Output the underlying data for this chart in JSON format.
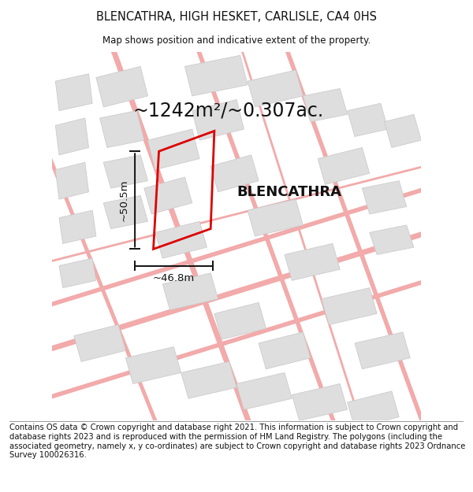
{
  "title": "BLENCATHRA, HIGH HESKET, CARLISLE, CA4 0HS",
  "subtitle": "Map shows position and indicative extent of the property.",
  "footer": "Contains OS data © Crown copyright and database right 2021. This information is subject to Crown copyright and database rights 2023 and is reproduced with the permission of HM Land Registry. The polygons (including the associated geometry, namely x, y co-ordinates) are subject to Crown copyright and database rights 2023 Ordnance Survey 100026316.",
  "area_label": "~1242m²/~0.307ac.",
  "property_label": "BLENCATHRA",
  "width_label": "~46.8m",
  "height_label": "~50.5m",
  "bg_color": "#ffffff",
  "map_bg": "#ffffff",
  "road_color": "#f2aaaa",
  "building_color": "#dedede",
  "building_edge": "#cccccc",
  "plot_edge_color": "#dd0000",
  "plot_linewidth": 2.0,
  "dim_line_color": "#111111",
  "title_fontsize": 10.5,
  "subtitle_fontsize": 8.5,
  "footer_fontsize": 7.2,
  "area_fontsize": 17,
  "property_fontsize": 13,
  "dim_fontsize": 9.5
}
